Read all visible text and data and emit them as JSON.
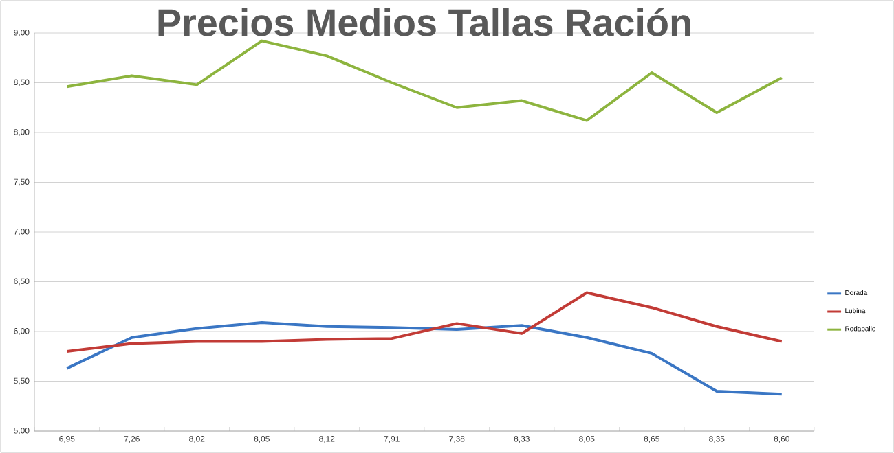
{
  "chart_data": {
    "type": "line",
    "title": "Precios Medios Tallas Ración",
    "categories": [
      "6,95",
      "7,26",
      "8,02",
      "8,05",
      "8,12",
      "7,91",
      "7,38",
      "8,33",
      "8,05",
      "8,65",
      "8,35",
      "8,60"
    ],
    "series": [
      {
        "name": "Dorada",
        "color": "#3a76c4",
        "values": [
          5.63,
          5.94,
          6.03,
          6.09,
          6.05,
          6.04,
          6.02,
          6.06,
          5.94,
          5.78,
          5.4,
          5.37
        ]
      },
      {
        "name": "Lubina",
        "color": "#c23b36",
        "values": [
          5.8,
          5.88,
          5.9,
          5.9,
          5.92,
          5.93,
          6.08,
          5.98,
          6.39,
          6.24,
          6.05,
          5.9
        ]
      },
      {
        "name": "Rodaballo",
        "color": "#8db43e",
        "values": [
          8.46,
          8.57,
          8.48,
          8.92,
          8.77,
          8.5,
          8.25,
          8.32,
          8.12,
          8.6,
          8.2,
          8.55
        ]
      }
    ],
    "ylim": [
      5,
      9
    ],
    "yticks": [
      {
        "value": 5,
        "label": "5,00"
      },
      {
        "value": 5.5,
        "label": "5,50"
      },
      {
        "value": 6,
        "label": "6,00"
      },
      {
        "value": 6.5,
        "label": "6,50"
      },
      {
        "value": 7,
        "label": "7,00"
      },
      {
        "value": 7.5,
        "label": "7,50"
      },
      {
        "value": 8,
        "label": "8,00"
      },
      {
        "value": 8.5,
        "label": "8,50"
      },
      {
        "value": 9,
        "label": "9,00"
      }
    ],
    "grid": "y",
    "legend": "right"
  }
}
